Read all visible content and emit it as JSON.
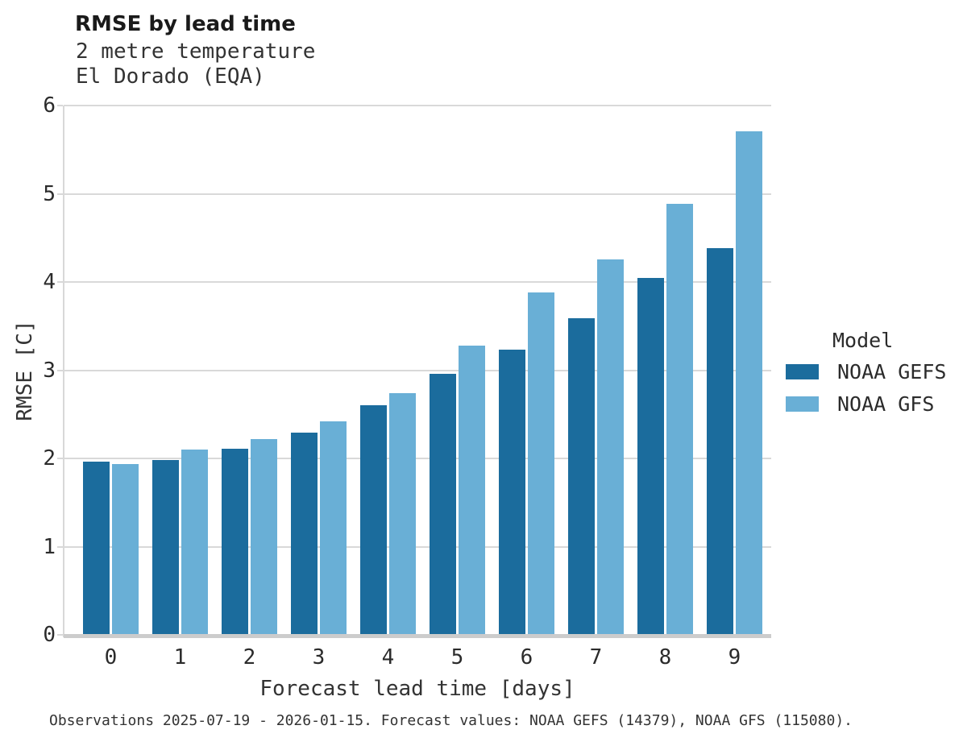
{
  "title": "RMSE by lead time",
  "subtitle_line1": "2 metre temperature",
  "subtitle_line2": "El Dorado (EQA)",
  "footer": "Observations 2025-07-19 - 2026-01-15. Forecast values: NOAA GEFS (14379), NOAA GFS (115080).",
  "legend": {
    "title": "Model",
    "items": [
      {
        "label": "NOAA GEFS",
        "color": "#1b6c9d"
      },
      {
        "label": "NOAA GFS",
        "color": "#69afd6"
      }
    ]
  },
  "chart_data": {
    "type": "bar",
    "title": "RMSE by lead time",
    "subtitle": [
      "2 metre temperature",
      "El Dorado (EQA)"
    ],
    "xlabel": "Forecast lead time [days]",
    "ylabel": "RMSE [C]",
    "categories": [
      "0",
      "1",
      "2",
      "3",
      "4",
      "5",
      "6",
      "7",
      "8",
      "9"
    ],
    "series": [
      {
        "name": "NOAA GEFS",
        "color": "#1b6c9d",
        "values": [
          1.96,
          1.98,
          2.11,
          2.29,
          2.6,
          2.96,
          3.23,
          3.59,
          4.05,
          4.38
        ]
      },
      {
        "name": "NOAA GFS",
        "color": "#69afd6",
        "values": [
          1.94,
          2.1,
          2.22,
          2.42,
          2.74,
          3.28,
          3.88,
          4.26,
          4.89,
          5.71
        ]
      }
    ],
    "ylim": [
      0,
      6
    ],
    "yticks": [
      0,
      1,
      2,
      3,
      4,
      5,
      6
    ],
    "grid": true,
    "legend_title": "Model",
    "legend_position": "right"
  }
}
